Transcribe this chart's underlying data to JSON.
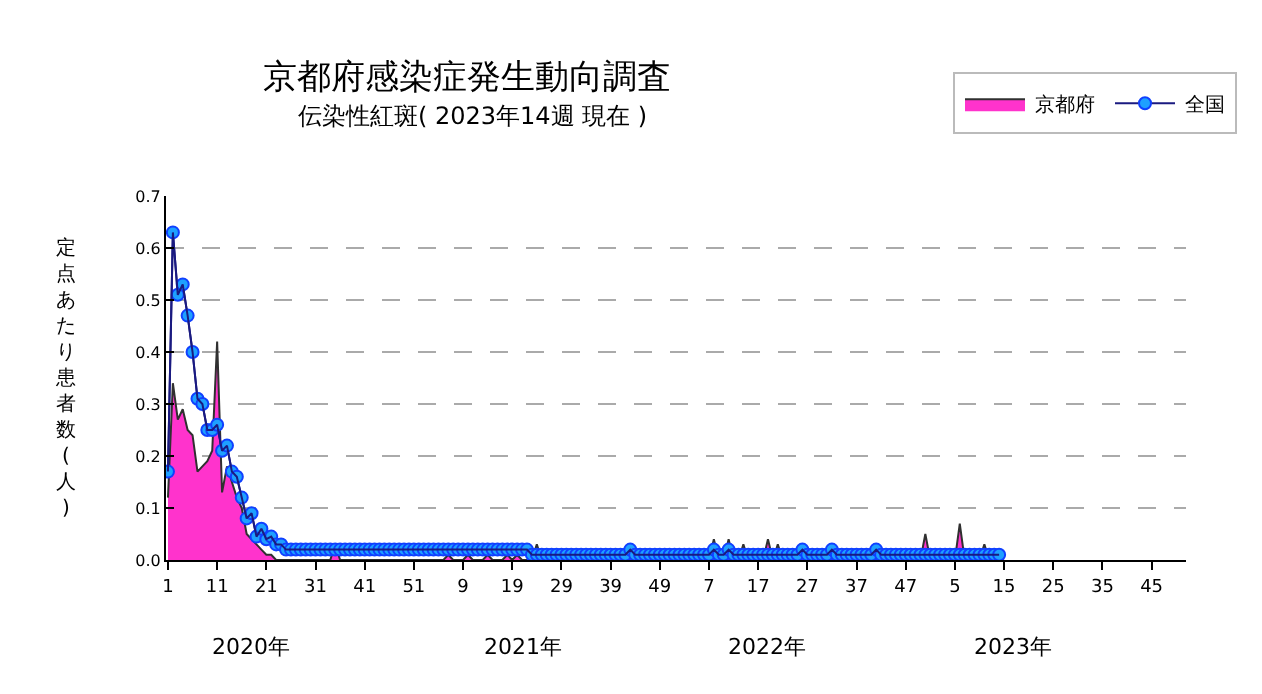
{
  "chart_data": {
    "type": "line",
    "title": "京都府感染症発生動向調査",
    "subtitle": "伝染性紅斑( 2023年14週 現在 )",
    "ylabel": "定点あたり患者数(人)",
    "categories": [
      "1",
      null,
      null,
      null,
      null,
      null,
      null,
      null,
      null,
      null,
      "11",
      null,
      null,
      null,
      null,
      null,
      null,
      null,
      null,
      null,
      "21",
      null,
      null,
      null,
      null,
      null,
      null,
      null,
      null,
      null,
      "31",
      null,
      null,
      null,
      null,
      null,
      null,
      null,
      null,
      null,
      "41",
      null,
      null,
      null,
      null,
      null,
      null,
      null,
      null,
      null,
      "51",
      null,
      null,
      null,
      null,
      null,
      null,
      null,
      null,
      null,
      "9",
      null,
      null,
      null,
      null,
      null,
      null,
      null,
      null,
      null,
      "19",
      null,
      null,
      null,
      null,
      null,
      null,
      null,
      null,
      null,
      "29",
      null,
      null,
      null,
      null,
      null,
      null,
      null,
      null,
      null,
      "39",
      null,
      null,
      null,
      null,
      null,
      null,
      null,
      null,
      null,
      "49",
      null,
      null,
      null,
      null,
      null,
      null,
      null,
      null,
      null,
      "7",
      null,
      null,
      null,
      null,
      null,
      null,
      null,
      null,
      null,
      "17",
      null,
      null,
      null,
      null,
      null,
      null,
      null,
      null,
      null,
      "27",
      null,
      null,
      null,
      null,
      null,
      null,
      null,
      null,
      null,
      "37",
      null,
      null,
      null,
      null,
      null,
      null,
      null,
      null,
      null,
      "47",
      null,
      null,
      null,
      null,
      null,
      null,
      null,
      null,
      null,
      "5",
      null,
      null,
      null,
      null,
      null,
      null,
      null,
      null,
      null,
      "15",
      null,
      null,
      null,
      null,
      null,
      null,
      null,
      null,
      null,
      "25",
      null,
      null,
      null,
      null,
      null,
      null,
      null,
      null,
      null,
      "35",
      null,
      null,
      null,
      null,
      null,
      null,
      null,
      null,
      null,
      "45",
      null,
      null,
      null,
      null,
      null,
      null,
      null
    ],
    "series": [
      {
        "name": "京都府",
        "type": "area",
        "color": "#ff33cc",
        "marker": "none",
        "values": [
          0.12,
          0.34,
          0.27,
          0.29,
          0.25,
          0.24,
          0.17,
          0.18,
          0.19,
          0.21,
          0.42,
          0.13,
          0.18,
          0.15,
          0.12,
          0.1,
          0.05,
          0.04,
          0.03,
          0.02,
          0.01,
          0.01,
          0,
          0,
          0,
          0,
          0,
          0,
          0,
          0,
          0,
          0,
          0,
          0,
          0.03,
          0,
          0,
          0,
          0,
          0,
          0,
          0,
          0,
          0,
          0,
          0,
          0,
          0,
          0,
          0,
          0,
          0,
          0,
          0,
          0,
          0,
          0,
          0.01,
          0,
          0,
          0,
          0.01,
          0,
          0,
          0,
          0.01,
          0,
          0,
          0,
          0.01,
          0,
          0.01,
          0,
          0,
          0,
          0.03,
          0,
          0,
          0,
          0,
          0,
          0,
          0,
          0,
          0,
          0,
          0,
          0,
          0,
          0,
          0,
          0,
          0,
          0,
          0.02,
          0,
          0,
          0,
          0,
          0,
          0,
          0,
          0,
          0,
          0,
          0,
          0,
          0,
          0,
          0,
          0,
          0.04,
          0,
          0,
          0.04,
          0,
          0,
          0.03,
          0,
          0,
          0,
          0,
          0.04,
          0,
          0.03,
          0,
          0,
          0,
          0,
          0.03,
          0,
          0,
          0,
          0,
          0,
          0.03,
          0,
          0,
          0,
          0,
          0,
          0,
          0,
          0,
          0,
          0,
          0,
          0,
          0,
          0,
          0,
          0,
          0,
          0,
          0.05,
          0,
          0,
          0,
          0,
          0,
          0,
          0.07,
          0,
          0,
          0,
          0,
          0.03,
          0,
          0,
          0,
          null,
          null,
          null,
          null,
          null,
          null,
          null,
          null,
          null,
          null,
          null,
          null,
          null,
          null,
          null,
          null,
          null,
          null,
          null,
          null,
          null,
          null,
          null,
          null,
          null,
          null,
          null,
          null,
          null,
          null,
          null,
          null,
          null,
          null,
          null,
          null,
          null,
          null
        ]
      },
      {
        "name": "全国",
        "color": "#1ea0ff",
        "marker": "circle",
        "values": [
          0.17,
          0.63,
          0.51,
          0.53,
          0.47,
          0.4,
          0.31,
          0.3,
          0.25,
          0.25,
          0.26,
          0.21,
          0.22,
          0.17,
          0.16,
          0.12,
          0.08,
          0.09,
          0.045,
          0.06,
          0.04,
          0.045,
          0.03,
          0.03,
          0.02,
          0.02,
          0.02,
          0.02,
          0.02,
          0.02,
          0.02,
          0.02,
          0.02,
          0.02,
          0.02,
          0.02,
          0.02,
          0.02,
          0.02,
          0.02,
          0.02,
          0.02,
          0.02,
          0.02,
          0.02,
          0.02,
          0.02,
          0.02,
          0.02,
          0.02,
          0.02,
          0.02,
          0.02,
          0.02,
          0.02,
          0.02,
          0.02,
          0.02,
          0.02,
          0.02,
          0.02,
          0.02,
          0.02,
          0.02,
          0.02,
          0.02,
          0.02,
          0.02,
          0.02,
          0.02,
          0.02,
          0.02,
          0.02,
          0.02,
          0.01,
          0.01,
          0.01,
          0.01,
          0.01,
          0.01,
          0.01,
          0.01,
          0.01,
          0.01,
          0.01,
          0.01,
          0.01,
          0.01,
          0.01,
          0.01,
          0.01,
          0.01,
          0.01,
          0.01,
          0.02,
          0.01,
          0.01,
          0.01,
          0.01,
          0.01,
          0.01,
          0.01,
          0.01,
          0.01,
          0.01,
          0.01,
          0.01,
          0.01,
          0.01,
          0.01,
          0.01,
          0.02,
          0.01,
          0.01,
          0.02,
          0.01,
          0.01,
          0.01,
          0.01,
          0.01,
          0.01,
          0.01,
          0.01,
          0.01,
          0.01,
          0.01,
          0.01,
          0.01,
          0.01,
          0.02,
          0.01,
          0.01,
          0.01,
          0.01,
          0.01,
          0.02,
          0.01,
          0.01,
          0.01,
          0.01,
          0.01,
          0.01,
          0.01,
          0.01,
          0.02,
          0.01,
          0.01,
          0.01,
          0.01,
          0.01,
          0.01,
          0.01,
          0.01,
          0.01,
          0.01,
          0.01,
          0.01,
          0.01,
          0.01,
          0.01,
          0.01,
          0.01,
          0.01,
          0.01,
          0.01,
          0.01,
          0.01,
          0.01,
          0.01,
          0.01,
          null,
          null,
          null,
          null,
          null,
          null,
          null,
          null,
          null,
          null,
          null,
          null,
          null,
          null,
          null,
          null,
          null,
          null,
          null,
          null,
          null,
          null,
          null,
          null,
          null,
          null,
          null,
          null,
          null,
          null,
          null,
          null,
          null,
          null,
          null,
          null,
          null,
          null
        ]
      }
    ],
    "ylim": [
      0,
      0.7
    ],
    "yticks": [
      {
        "value": 0,
        "label": "0.0"
      },
      0.1,
      0.2,
      0.3,
      0.4,
      0.5,
      0.6,
      0.7
    ],
    "grid": "y",
    "legend": "top right",
    "annotations": [
      "2020年",
      "2021年",
      "2022年",
      "2023年"
    ]
  }
}
